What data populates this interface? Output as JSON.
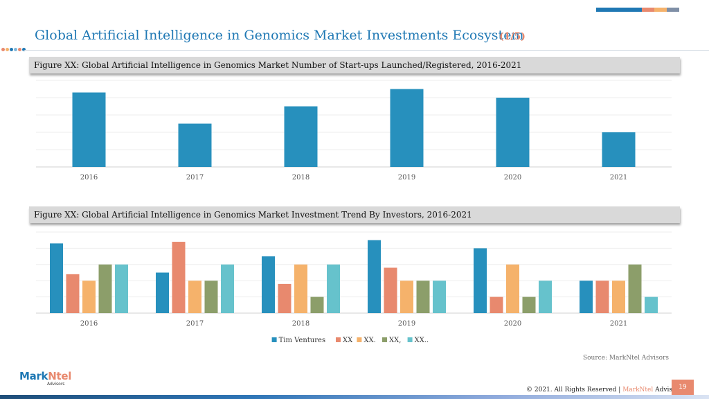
{
  "header": {
    "title": "Global Artificial Intelligence in Genomics Market Investments Ecosystem",
    "page_fraction": "(1/5)",
    "accent_colors": [
      "#1f78b4",
      "#e8896e",
      "#f5b26b",
      "#7f8fa6"
    ],
    "dot_colors": [
      "#e8896e",
      "#f5b26b",
      "#1f78b4",
      "#7fb6d9",
      "#e8896e",
      "#1f78b4"
    ]
  },
  "figure1": {
    "caption": "Figure XX: Global Artificial Intelligence in Genomics Market Number of Start-ups Launched/Registered, 2016-2021"
  },
  "figure2": {
    "caption": "Figure XX: Global Artificial Intelligence in Genomics Market Investment Trend By Investors, 2016-2021"
  },
  "chart_data": [
    {
      "type": "bar",
      "categories": [
        "2016",
        "2017",
        "2018",
        "2019",
        "2020",
        "2021"
      ],
      "series": [
        {
          "values": [
            4.3,
            2.5,
            3.5,
            4.5,
            4.0,
            2.0
          ],
          "color": "#2790bd"
        }
      ],
      "ylim": [
        0,
        5
      ],
      "grid": true
    },
    {
      "type": "bar",
      "categories": [
        "2016",
        "2017",
        "2018",
        "2019",
        "2020",
        "2021"
      ],
      "series": [
        {
          "name": "Tim Ventures",
          "values": [
            4.3,
            2.5,
            3.5,
            4.5,
            4.0,
            2.0
          ],
          "color": "#2790bd"
        },
        {
          "name": "XX",
          "values": [
            2.4,
            4.4,
            1.8,
            2.8,
            1.0,
            2.0
          ],
          "color": "#e8896e"
        },
        {
          "name": "XX.",
          "values": [
            2.0,
            2.0,
            3.0,
            2.0,
            3.0,
            2.0
          ],
          "color": "#f5b26b"
        },
        {
          "name": "XX,",
          "values": [
            3.0,
            2.0,
            1.0,
            2.0,
            1.0,
            3.0
          ],
          "color": "#8c9e6a"
        },
        {
          "name": "XX..",
          "values": [
            3.0,
            3.0,
            3.0,
            2.0,
            2.0,
            1.0
          ],
          "color": "#66c2cc"
        }
      ],
      "ylim": [
        0,
        5
      ],
      "grid": true,
      "legend": "bottom"
    }
  ],
  "source": "Source: MarkNtel Advisors",
  "logo": {
    "part1": "Mark",
    "part2": "Ntel",
    "sub": "Advisors",
    "color1": "#1f78b4",
    "color2": "#e8896e"
  },
  "footer": {
    "copyright": "© 2021. All Rights Reserved | ",
    "brand": "MarkNtel",
    "suffix": " Advisors",
    "page": "19"
  }
}
